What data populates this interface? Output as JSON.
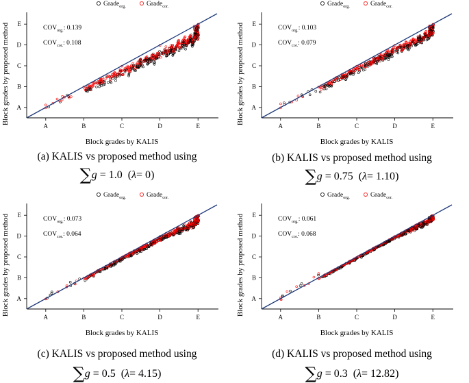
{
  "chart_data": [
    {
      "type": "scatter",
      "panel": "a",
      "xlabel": "Block grades by KALIS",
      "ylabel": "Block grades by proposed method",
      "tick_labels": [
        "A",
        "B",
        "C",
        "D",
        "E"
      ],
      "xlim": [
        0.5,
        5.5
      ],
      "ylim": [
        0.5,
        5.5
      ],
      "legend": {
        "org_base": "Grade",
        "org_sub": "org.",
        "cor_base": "Grade",
        "cor_sub": "cor."
      },
      "cov": {
        "org_base": "COV",
        "org_sub": "org.",
        "org_value": ": 0.139",
        "cor_base": "COV",
        "cor_sub": "cor.",
        "cor_value": ": 0.108"
      },
      "reference_line": {
        "from": [
          0.5,
          0.5
        ],
        "to": [
          5.5,
          5.5
        ]
      },
      "clusters": [
        [
          1,
          1
        ],
        [
          2,
          1.82
        ],
        [
          3,
          2.62
        ],
        [
          4,
          3.42
        ],
        [
          5,
          4.25
        ]
      ],
      "caption_line1": "(a)  KALIS vs proposed method using",
      "caption_line2": "∑g = 1.0  (λ= 0)",
      "caption_symbol": "∑",
      "caption_var": "g",
      "caption_value": " = 1.0",
      "caption_lambda_sym": "λ",
      "caption_lambda_value": "= 0"
    },
    {
      "type": "scatter",
      "panel": "b",
      "xlabel": "Block grades by KALIS",
      "ylabel": "Block grades by proposed method",
      "tick_labels": [
        "A",
        "B",
        "C",
        "D",
        "E"
      ],
      "xlim": [
        0.5,
        5.5
      ],
      "ylim": [
        0.5,
        5.5
      ],
      "legend": {
        "org_base": "Grade",
        "org_sub": "org.",
        "cor_base": "Grade",
        "cor_sub": "cor."
      },
      "cov": {
        "org_base": "COV",
        "org_sub": "org.",
        "org_value": ": 0.103",
        "cor_base": "COV",
        "cor_sub": "cor.",
        "cor_value": ": 0.079"
      },
      "reference_line": {
        "from": [
          0.5,
          0.5
        ],
        "to": [
          5.5,
          5.5
        ]
      },
      "clusters": [
        [
          1,
          1
        ],
        [
          2,
          1.88
        ],
        [
          3,
          2.8
        ],
        [
          4,
          3.65
        ],
        [
          5,
          4.45
        ]
      ],
      "caption_line1": "(b)  KALIS vs proposed method using",
      "caption_line2": "∑g = 0.75  (λ= 1.10)",
      "caption_symbol": "∑",
      "caption_var": "g",
      "caption_value": " = 0.75",
      "caption_lambda_sym": "λ",
      "caption_lambda_value": "= 1.10"
    },
    {
      "type": "scatter",
      "panel": "c",
      "xlabel": "Block grades by KALIS",
      "ylabel": "Block grades by proposed method",
      "tick_labels": [
        "A",
        "B",
        "C",
        "D",
        "E"
      ],
      "xlim": [
        0.5,
        5.5
      ],
      "ylim": [
        0.5,
        5.5
      ],
      "legend": {
        "org_base": "Grade",
        "org_sub": "org.",
        "cor_base": "Grade",
        "cor_sub": "cor."
      },
      "cov": {
        "org_base": "COV",
        "org_sub": "org.",
        "org_value": ": 0.073",
        "cor_base": "COV",
        "cor_sub": "cor.",
        "cor_value": ": 0.064"
      },
      "reference_line": {
        "from": [
          0.5,
          0.5
        ],
        "to": [
          5.5,
          5.5
        ]
      },
      "clusters": [
        [
          1,
          1
        ],
        [
          2,
          1.95
        ],
        [
          3,
          2.95
        ],
        [
          4,
          3.85
        ],
        [
          5,
          4.6
        ]
      ],
      "caption_line1": "(c)  KALIS vs proposed method using",
      "caption_line2": "∑g = 0.5  (λ= 4.15)",
      "caption_symbol": "∑",
      "caption_var": "g",
      "caption_value": " = 0.5",
      "caption_lambda_sym": "λ",
      "caption_lambda_value": "= 4.15"
    },
    {
      "type": "scatter",
      "panel": "d",
      "xlabel": "Block grades by KALIS",
      "ylabel": "Block grades by proposed method",
      "tick_labels": [
        "A",
        "B",
        "C",
        "D",
        "E"
      ],
      "xlim": [
        0.5,
        5.5
      ],
      "ylim": [
        0.5,
        5.5
      ],
      "legend": {
        "org_base": "Grade",
        "org_sub": "org.",
        "cor_base": "Grade",
        "cor_sub": "cor."
      },
      "cov": {
        "org_base": "COV",
        "org_sub": "org.",
        "org_value": ": 0.061",
        "cor_base": "COV",
        "cor_sub": "cor.",
        "cor_value": ": 0.068"
      },
      "reference_line": {
        "from": [
          0.5,
          0.5
        ],
        "to": [
          5.5,
          5.5
        ]
      },
      "clusters": [
        [
          1,
          1
        ],
        [
          2,
          2.05
        ],
        [
          3,
          3.05
        ],
        [
          4,
          4.0
        ],
        [
          5,
          4.75
        ]
      ],
      "caption_line1": "(d)  KALIS vs proposed method using",
      "caption_line2": "∑g = 0.3  (λ= 12.82)",
      "caption_symbol": "∑",
      "caption_var": "g",
      "caption_value": " = 0.3",
      "caption_lambda_sym": "λ",
      "caption_lambda_value": "= 12.82"
    }
  ],
  "colors": {
    "org": "#000000",
    "cor": "#ff0000",
    "reference_line": "#1f3a7a",
    "axis": "#000000"
  }
}
